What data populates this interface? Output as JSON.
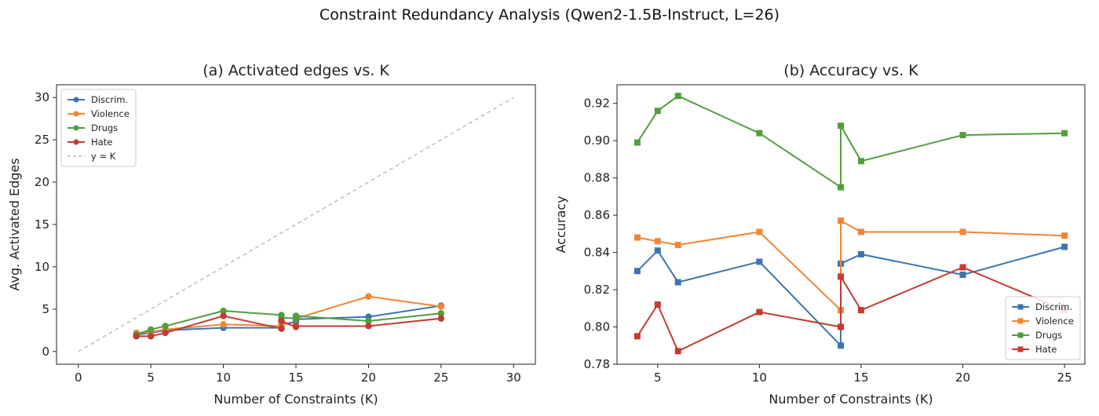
{
  "figure": {
    "suptitle": "Constraint Redundancy Analysis (Qwen2-1.5B-Instruct, L=26)"
  },
  "colors": {
    "Discrim.": "#3b75af",
    "Violence": "#ef8636",
    "Drugs": "#519e3e",
    "Hate": "#c53a32",
    "reference": "#bbbbbb"
  },
  "chart_data": [
    {
      "type": "line",
      "title": "(a) Activated edges vs. K",
      "xlabel": "Number of Constraints (K)",
      "ylabel": "Avg. Activated Edges",
      "xlim": [
        -1.5,
        31.5
      ],
      "ylim": [
        -1.5,
        31.5
      ],
      "xticks": [
        0,
        5,
        10,
        15,
        20,
        25,
        30
      ],
      "yticks": [
        0,
        5,
        10,
        15,
        20,
        25,
        30
      ],
      "marker": "circle",
      "legend_position": "top-left",
      "x": [
        4,
        5,
        6,
        10,
        14,
        14,
        15,
        15,
        20,
        25
      ],
      "series": [
        {
          "name": "Discrim.",
          "values": [
            2.0,
            2.2,
            2.5,
            2.8,
            2.8,
            3.2,
            3.5,
            3.8,
            4.1,
            5.4
          ]
        },
        {
          "name": "Violence",
          "values": [
            2.2,
            2.3,
            2.6,
            3.2,
            3.0,
            3.4,
            3.0,
            3.9,
            6.5,
            5.3
          ]
        },
        {
          "name": "Drugs",
          "values": [
            2.0,
            2.6,
            3.0,
            4.8,
            4.3,
            4.0,
            3.9,
            4.2,
            3.6,
            4.5
          ]
        },
        {
          "name": "Hate",
          "values": [
            1.8,
            1.8,
            2.2,
            4.2,
            2.7,
            3.6,
            2.9,
            3.0,
            3.0,
            3.9
          ]
        }
      ],
      "reference_line": {
        "name": "y = K",
        "x": [
          0,
          30
        ],
        "y": [
          0,
          30
        ]
      }
    },
    {
      "type": "line",
      "title": "(b) Accuracy vs. K",
      "xlabel": "Number of Constraints (K)",
      "ylabel": "Accuracy",
      "xlim": [
        3.0,
        26.0
      ],
      "ylim": [
        0.78,
        0.93
      ],
      "xticks": [
        5,
        10,
        15,
        20,
        25
      ],
      "yticks": [
        0.78,
        0.8,
        0.82,
        0.84,
        0.86,
        0.88,
        0.9,
        0.92
      ],
      "ytick_labels": [
        "0.78",
        "0.80",
        "0.82",
        "0.84",
        "0.86",
        "0.88",
        "0.90",
        "0.92"
      ],
      "marker": "square",
      "legend_position": "bottom-right",
      "x": [
        4,
        5,
        6,
        10,
        14,
        14,
        15,
        20,
        25
      ],
      "series": [
        {
          "name": "Discrim.",
          "values": [
            0.83,
            0.841,
            0.824,
            0.835,
            0.79,
            0.834,
            0.839,
            0.828,
            0.843
          ]
        },
        {
          "name": "Violence",
          "values": [
            0.848,
            0.846,
            0.844,
            0.851,
            0.809,
            0.857,
            0.851,
            0.851,
            0.849
          ]
        },
        {
          "name": "Drugs",
          "values": [
            0.899,
            0.916,
            0.924,
            0.904,
            0.875,
            0.908,
            0.889,
            0.903,
            0.904
          ]
        },
        {
          "name": "Hate",
          "values": [
            0.795,
            0.812,
            0.787,
            0.808,
            0.8,
            0.827,
            0.809,
            0.832,
            0.809
          ]
        }
      ]
    }
  ]
}
